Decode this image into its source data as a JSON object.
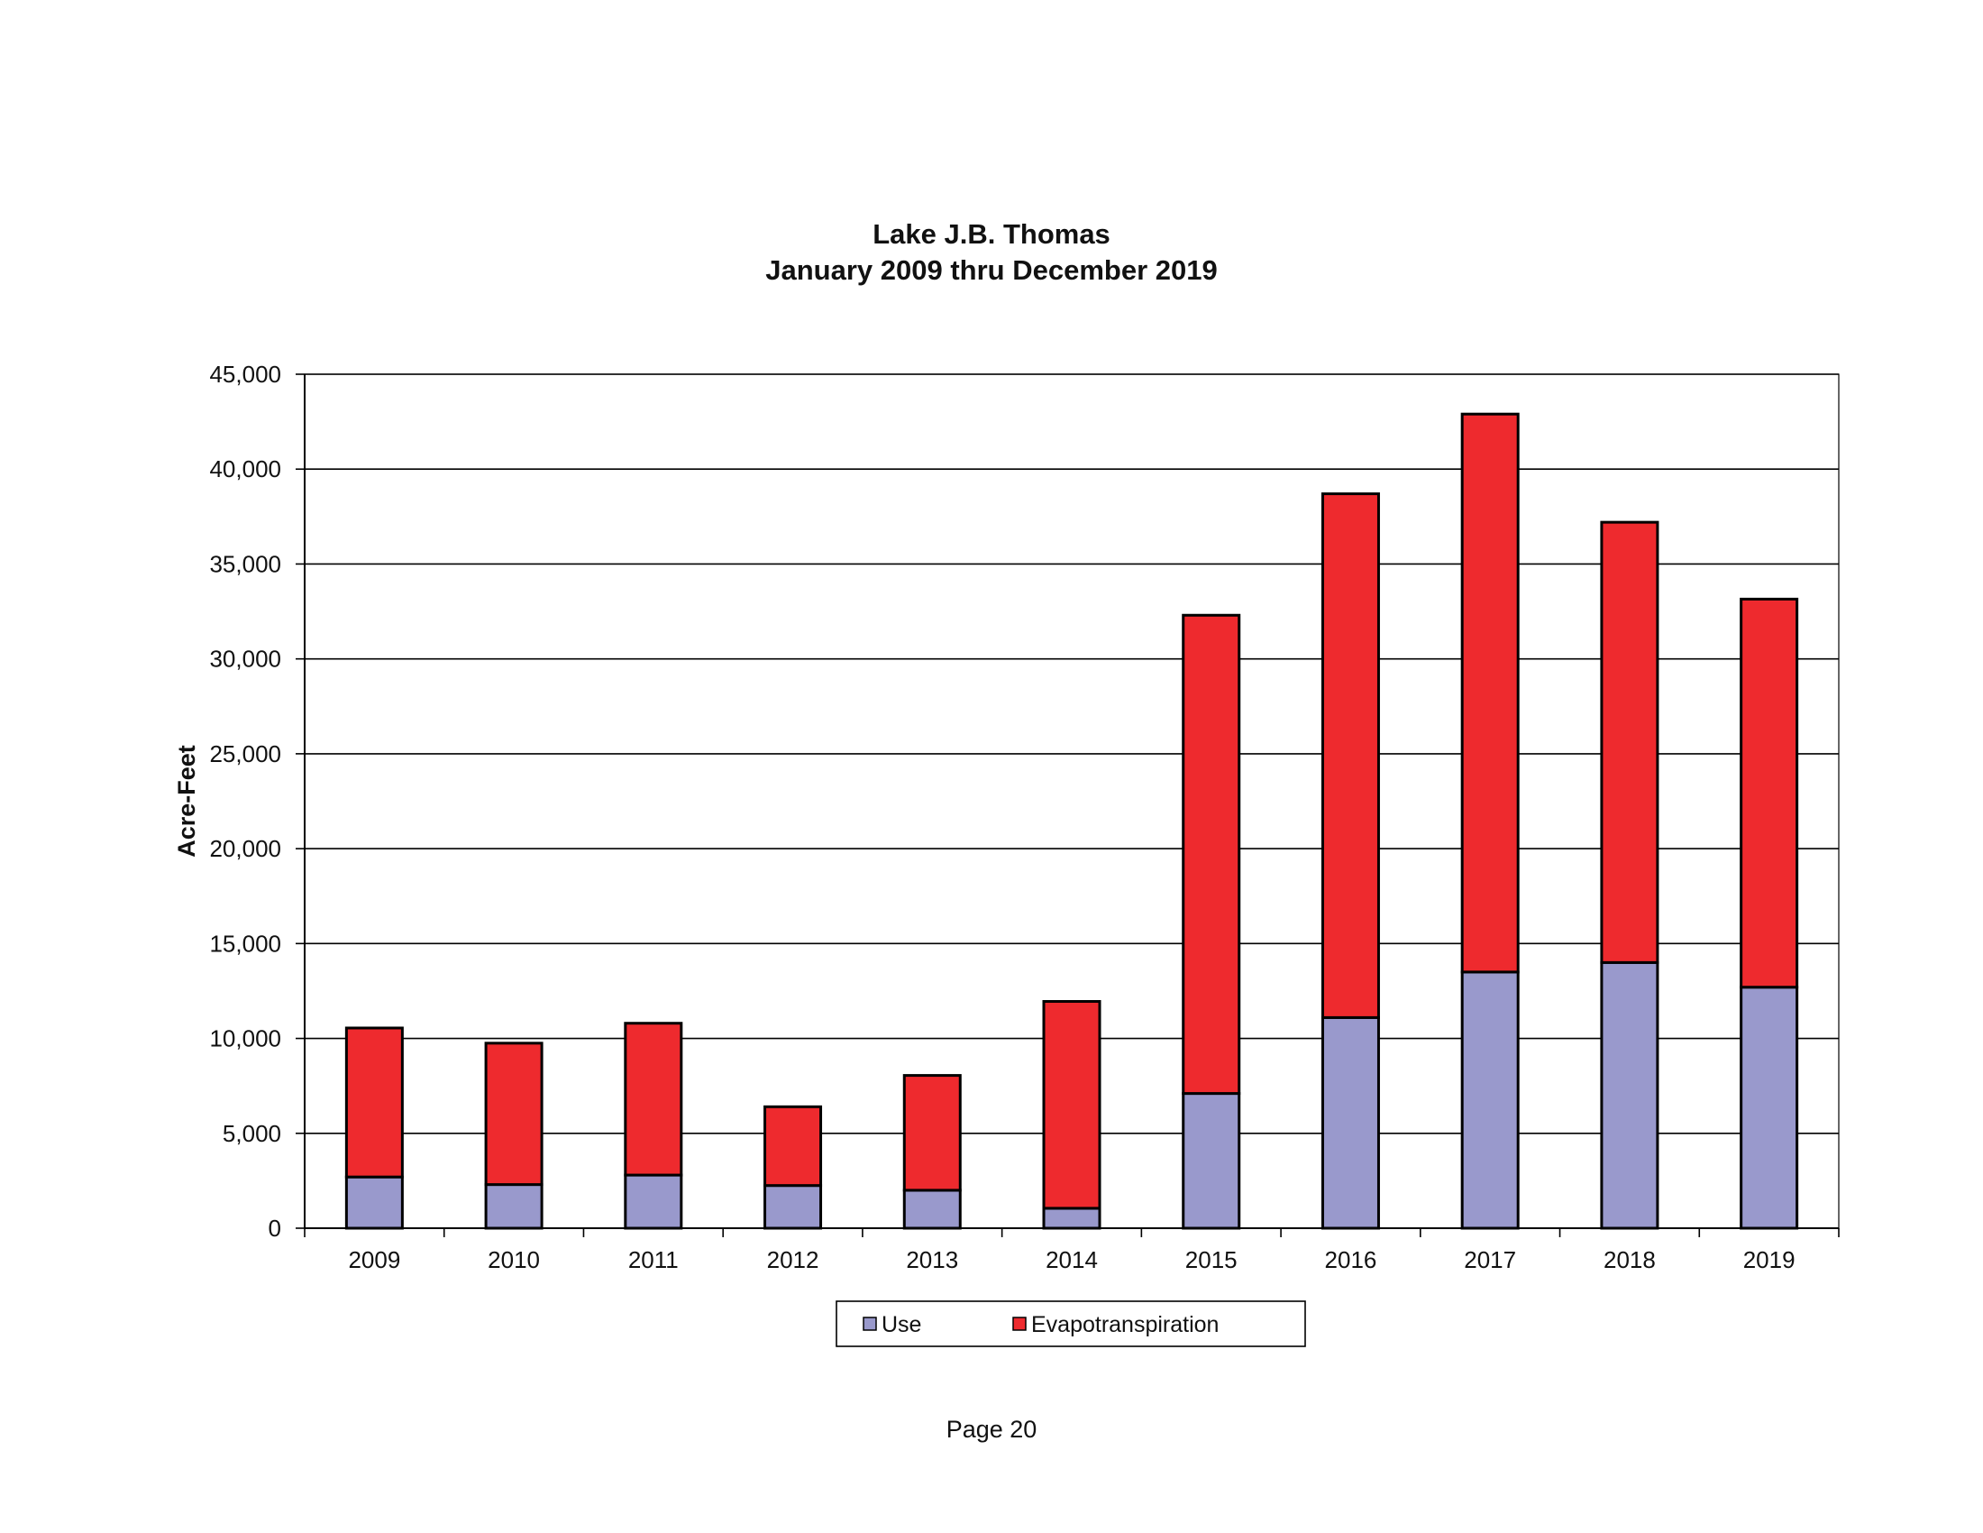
{
  "page": {
    "page_number": "Page 20"
  },
  "chart_data": {
    "type": "bar",
    "stacked": true,
    "title": "Lake J.B. Thomas",
    "subtitle": "January 2009 thru December 2019",
    "xlabel": "",
    "ylabel": "Acre-Feet",
    "ylim": [
      0,
      45000
    ],
    "yticks": [
      "0",
      "5,000",
      "10,000",
      "15,000",
      "20,000",
      "25,000",
      "30,000",
      "35,000",
      "40,000",
      "45,000"
    ],
    "grid": true,
    "legend_position": "bottom",
    "categories": [
      "2009",
      "2010",
      "2011",
      "2012",
      "2013",
      "2014",
      "2015",
      "2016",
      "2017",
      "2018",
      "2019"
    ],
    "series": [
      {
        "name": "Use",
        "color": "#9999cc",
        "values": [
          2700,
          2300,
          2800,
          2250,
          2000,
          1050,
          7100,
          11100,
          13500,
          14000,
          12700
        ]
      },
      {
        "name": "Evapotranspiration",
        "color": "#ee2a2e",
        "values": [
          7850,
          7450,
          8000,
          4150,
          6050,
          10900,
          25200,
          27600,
          29400,
          23200,
          20450
        ]
      }
    ]
  }
}
